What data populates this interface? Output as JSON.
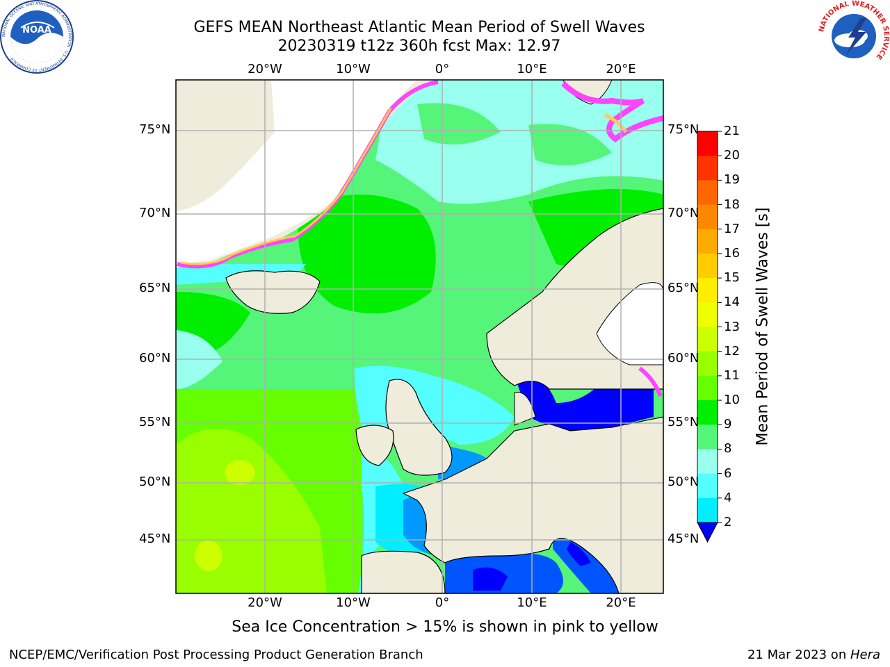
{
  "title": {
    "line1": "GEFS MEAN Northeast Atlantic Mean Period of Swell Waves",
    "line2": "20230319 t12z 360h fcst   Max: 12.97"
  },
  "map": {
    "lon_labels": [
      "20°W",
      "10°W",
      "0°",
      "10°E",
      "20°E"
    ],
    "lat_labels": [
      "75°N",
      "70°N",
      "65°N",
      "60°N",
      "55°N",
      "50°N",
      "45°N"
    ],
    "lat_values": [
      75,
      70,
      65,
      60,
      55,
      50,
      45
    ],
    "lon_values": [
      -20,
      -10,
      0,
      10,
      20
    ],
    "land_color": "#efecdc",
    "grid_color": "#b0b0b0"
  },
  "colorbar": {
    "label": "Mean Period of Swell Waves [s]",
    "ticks": [
      "21",
      "20",
      "19",
      "18",
      "17",
      "16",
      "15",
      "14",
      "13",
      "12",
      "11",
      "10",
      "9",
      "8",
      "6",
      "4",
      "2"
    ],
    "colors": [
      "#ff0000",
      "#ff3300",
      "#ff6600",
      "#ff8800",
      "#ffaa00",
      "#ffcc00",
      "#ffee00",
      "#eeff00",
      "#ccff00",
      "#99ff00",
      "#66ff00",
      "#00ee00",
      "#55f57a",
      "#99ffee",
      "#55ffff",
      "#00eeff",
      "#0099ff",
      "#0055ff"
    ],
    "extend_color": "#0000ff"
  },
  "logos": {
    "noaa_text": "NOAA",
    "noaa_ring": "NATIONAL OCEANIC AND ATMOSPHERIC ADMINISTRATION · U.S. DEPARTMENT OF COMMERCE",
    "nws_ring": "NATIONAL WEATHER SERVICE"
  },
  "caption": "Sea Ice Concentration > 15% is shown in pink to yellow",
  "footer": {
    "left": "NCEP/EMC/Verification Post Processing Product Generation Branch",
    "right_prefix": "21 Mar 2023 on ",
    "right_host": "Hera"
  }
}
